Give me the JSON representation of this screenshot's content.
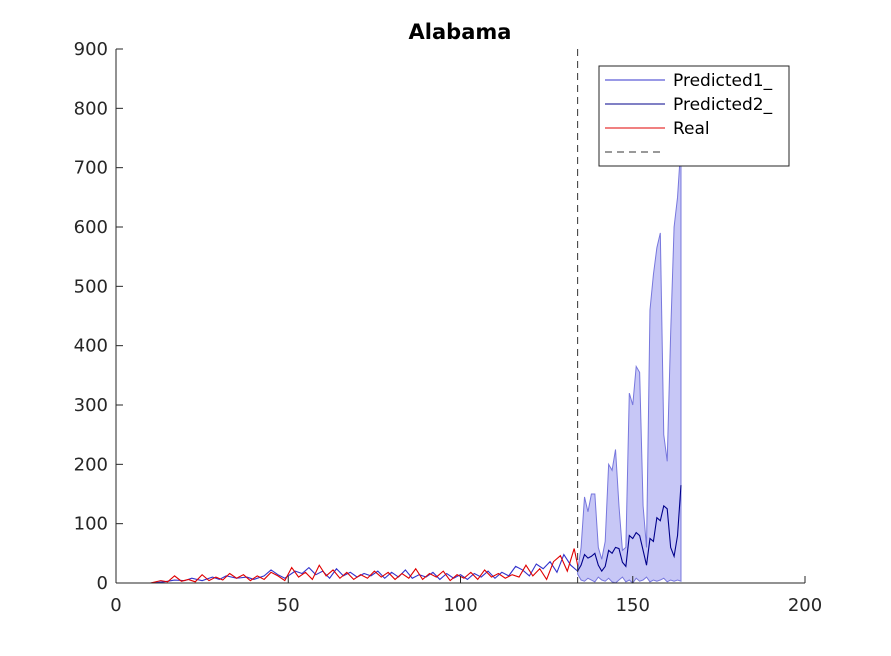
{
  "chart_data": {
    "type": "line",
    "title": "Alabama",
    "xlabel": "",
    "ylabel": "",
    "xlim": [
      0,
      200
    ],
    "ylim": [
      0,
      900
    ],
    "xticks": [
      0,
      50,
      100,
      150,
      200
    ],
    "yticks": [
      0,
      100,
      200,
      300,
      400,
      500,
      600,
      700,
      800,
      900
    ],
    "grid": false,
    "legend_placement": "top-right",
    "vline_x": 134,
    "legend": [
      "Predicted1_",
      "Predicted2_",
      "Real",
      ""
    ],
    "colors": {
      "predicted1": "#3333cc",
      "predicted2": "#00008b",
      "real": "#e00000",
      "band": "#9999ee",
      "vline": "#333333"
    },
    "series": [
      {
        "name": "Predicted1_",
        "x": [
          0,
          10,
          14,
          17,
          20,
          22,
          25,
          28,
          30,
          32,
          35,
          38,
          40,
          43,
          45,
          47,
          49,
          52,
          54,
          56,
          58,
          60,
          62,
          64,
          66,
          68,
          70,
          72,
          74,
          76,
          78,
          80,
          82,
          84,
          86,
          88,
          90,
          92,
          94,
          96,
          98,
          100,
          102,
          104,
          106,
          108,
          110,
          112,
          114,
          116,
          118,
          120,
          122,
          124,
          126,
          128,
          130,
          132,
          134
        ],
        "values": [
          0,
          0,
          2,
          5,
          4,
          8,
          4,
          10,
          6,
          12,
          8,
          10,
          6,
          12,
          22,
          14,
          8,
          20,
          16,
          26,
          14,
          20,
          8,
          24,
          12,
          18,
          10,
          16,
          12,
          20,
          8,
          18,
          10,
          22,
          8,
          14,
          10,
          18,
          6,
          16,
          8,
          14,
          6,
          16,
          10,
          20,
          8,
          18,
          12,
          28,
          22,
          12,
          32,
          24,
          36,
          18,
          48,
          30,
          20
        ]
      },
      {
        "name": "Predicted2_",
        "x": [
          134,
          135,
          136,
          137,
          138,
          139,
          140,
          141,
          142,
          143,
          144,
          145,
          146,
          147,
          148,
          149,
          150,
          151,
          152,
          153,
          154,
          155,
          156,
          157,
          158,
          159,
          160,
          161,
          162,
          163,
          164
        ],
        "values": [
          20,
          30,
          48,
          42,
          45,
          50,
          30,
          20,
          28,
          55,
          50,
          60,
          58,
          35,
          28,
          80,
          75,
          85,
          80,
          55,
          30,
          75,
          70,
          110,
          105,
          130,
          125,
          60,
          45,
          80,
          165
        ]
      },
      {
        "name": "Real",
        "x": [
          0,
          10,
          13,
          15,
          17,
          19,
          21,
          23,
          25,
          27,
          29,
          31,
          33,
          35,
          37,
          39,
          41,
          43,
          45,
          47,
          49,
          51,
          53,
          55,
          57,
          59,
          61,
          63,
          65,
          67,
          69,
          71,
          73,
          75,
          77,
          79,
          81,
          83,
          85,
          87,
          89,
          91,
          93,
          95,
          97,
          99,
          101,
          103,
          105,
          107,
          109,
          111,
          113,
          115,
          117,
          119,
          121,
          123,
          125,
          127,
          129,
          131,
          133,
          134
        ],
        "values": [
          0,
          0,
          4,
          2,
          12,
          3,
          6,
          2,
          14,
          4,
          10,
          5,
          16,
          8,
          14,
          4,
          12,
          6,
          18,
          12,
          4,
          26,
          10,
          18,
          6,
          30,
          12,
          22,
          8,
          18,
          6,
          14,
          8,
          20,
          10,
          18,
          6,
          16,
          8,
          24,
          6,
          16,
          10,
          20,
          4,
          14,
          8,
          18,
          6,
          22,
          10,
          16,
          8,
          14,
          10,
          30,
          12,
          24,
          6,
          36,
          46,
          20,
          58,
          30
        ]
      }
    ],
    "band": {
      "x": [
        134,
        135,
        136,
        137,
        138,
        139,
        140,
        141,
        142,
        143,
        144,
        145,
        146,
        147,
        148,
        149,
        150,
        151,
        152,
        153,
        154,
        155,
        156,
        157,
        158,
        159,
        160,
        161,
        162,
        163,
        164
      ],
      "upper": [
        20,
        60,
        145,
        120,
        150,
        150,
        60,
        40,
        70,
        200,
        190,
        225,
        130,
        55,
        60,
        320,
        300,
        365,
        355,
        130,
        60,
        460,
        520,
        565,
        590,
        250,
        205,
        420,
        600,
        650,
        740
      ],
      "lower": [
        15,
        5,
        3,
        8,
        5,
        2,
        10,
        5,
        3,
        8,
        2,
        0,
        5,
        10,
        2,
        5,
        0,
        8,
        3,
        5,
        10,
        2,
        5,
        3,
        5,
        8,
        2,
        5,
        3,
        5,
        3
      ]
    }
  }
}
